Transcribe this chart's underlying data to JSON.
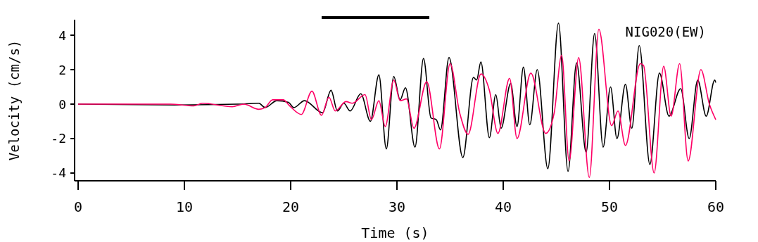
{
  "chart_data": {
    "type": "line",
    "xlabel": "Time (s)",
    "ylabel": "Velocity (cm/s)",
    "xlim": [
      -0.33,
      60
    ],
    "ylim": [
      -4.45,
      4.9
    ],
    "xticks": [
      0,
      10,
      20,
      30,
      40,
      50,
      60
    ],
    "yticks": [
      -4,
      -2,
      0,
      2,
      4
    ],
    "grid": false,
    "annotations": [
      "NIG020(EW)"
    ],
    "series": [
      {
        "color": "#000000",
        "x": [
          0,
          9,
          15,
          17,
          17.6,
          18.7,
          19.8,
          20.3,
          21.3,
          23.0,
          23.8,
          24.4,
          25.0,
          25.6,
          26.6,
          27.5,
          28.3,
          29.0,
          29.7,
          30.3,
          30.8,
          31.7,
          32.5,
          33.2,
          33.7,
          34.1,
          34.9,
          36.2,
          37.2,
          37.5,
          37.9,
          38.7,
          39.3,
          39.8,
          40.7,
          41.3,
          41.9,
          42.5,
          43.2,
          44.2,
          45.2,
          46.1,
          46.9,
          47.8,
          48.6,
          49.4,
          50.1,
          50.7,
          51.5,
          52.1,
          52.8,
          53.8,
          54.7,
          55.6,
          56.7,
          57.5,
          58.3,
          59.1,
          59.9,
          60
        ],
        "values": [
          0,
          -0.05,
          0,
          0.05,
          -0.2,
          0.2,
          0.1,
          -0.2,
          0.2,
          -0.5,
          0.8,
          -0.4,
          0.05,
          -0.4,
          0.6,
          -1.0,
          1.7,
          -2.6,
          1.6,
          0.25,
          0.95,
          -2.5,
          2.65,
          -0.8,
          -0.9,
          -1.5,
          2.7,
          -3.1,
          1.55,
          1.4,
          2.45,
          -1.95,
          0.55,
          -1.4,
          1.2,
          -1.3,
          2.15,
          -1.2,
          2.0,
          -3.75,
          4.7,
          -3.9,
          2.4,
          -2.8,
          4.1,
          -2.5,
          1.0,
          -2.0,
          1.15,
          -1.4,
          3.4,
          -3.5,
          1.8,
          -0.7,
          0.9,
          -2.0,
          1.4,
          -0.7,
          1.4,
          1.25
        ]
      },
      {
        "color": "#ff0066",
        "x": [
          0,
          8.7,
          10.9,
          11.7,
          14.5,
          15.6,
          17.0,
          17.6,
          18.3,
          19.3,
          19.9,
          21.0,
          22.0,
          22.9,
          23.6,
          24.2,
          25.2,
          25.8,
          27.0,
          27.6,
          28.3,
          28.9,
          29.7,
          30.3,
          30.9,
          31.6,
          32.8,
          34.0,
          35.0,
          35.9,
          36.7,
          37.9,
          38.7,
          39.5,
          40.6,
          41.3,
          42.6,
          44.0,
          44.8,
          45.5,
          46.2,
          47.1,
          48.1,
          49.0,
          50.2,
          50.8,
          51.5,
          52.9,
          53.2,
          54.2,
          55.1,
          55.8,
          56.6,
          57.4,
          58.6,
          59.4,
          60
        ],
        "values": [
          0,
          0,
          -0.1,
          0.05,
          -0.15,
          0,
          -0.3,
          -0.2,
          0.25,
          0.25,
          -0.1,
          -0.6,
          0.75,
          -0.65,
          0.4,
          -0.4,
          0.15,
          0.05,
          0.55,
          -0.9,
          0.2,
          -1.3,
          1.4,
          0.2,
          0.3,
          -1.4,
          1.3,
          -2.6,
          2.35,
          -0.5,
          -1.75,
          1.75,
          0.8,
          -1.7,
          1.5,
          -2.0,
          1.8,
          -1.7,
          -0.5,
          2.85,
          -3.3,
          2.7,
          -4.25,
          4.35,
          -1.25,
          -0.4,
          -2.4,
          2.35,
          2.25,
          -4.0,
          2.2,
          -0.7,
          2.35,
          -3.3,
          2.0,
          0.0,
          -0.9
        ]
      }
    ]
  }
}
